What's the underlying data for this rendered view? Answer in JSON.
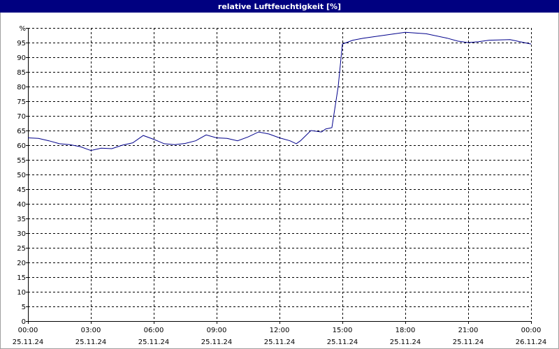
{
  "chart_data": {
    "type": "line",
    "title": "relative Luftfeuchtigkeit [%]",
    "x": [
      0,
      0.5,
      1,
      1.5,
      2,
      2.5,
      3,
      3.5,
      4,
      4.5,
      5,
      5.5,
      6,
      6.5,
      7,
      7.5,
      8,
      8.5,
      9,
      9.5,
      10,
      10.5,
      11,
      11.5,
      12,
      12.5,
      12.8,
      13,
      13.5,
      14,
      14.2,
      14.5,
      14.8,
      15,
      15.5,
      16,
      17,
      18,
      19,
      20,
      20.5,
      21,
      21.5,
      22,
      23,
      24
    ],
    "series": [
      {
        "name": "relative Luftfeuchtigkeit",
        "color": "#00008b",
        "values": [
          62.5,
          62.3,
          61.5,
          60.5,
          60.2,
          59.5,
          58.2,
          59,
          58.8,
          60,
          60.8,
          63.3,
          62,
          60.5,
          60.2,
          60.6,
          61.5,
          63.5,
          62.5,
          62.3,
          61.5,
          62.8,
          64.5,
          63.8,
          62.5,
          61.5,
          60.5,
          61.5,
          65,
          64.5,
          65.5,
          66,
          80,
          94.5,
          95.8,
          96.5,
          97.5,
          98.5,
          98,
          96.5,
          95.5,
          95,
          95.3,
          95.8,
          96,
          94.5
        ]
      }
    ],
    "xlim": [
      0,
      24
    ],
    "xticks": [
      {
        "value": 0,
        "label": "00:00"
      },
      {
        "value": 3,
        "label": "03:00"
      },
      {
        "value": 6,
        "label": "06:00"
      },
      {
        "value": 9,
        "label": "09:00"
      },
      {
        "value": 12,
        "label": "12:00"
      },
      {
        "value": 15,
        "label": "15:00"
      },
      {
        "value": 18,
        "label": "18:00"
      },
      {
        "value": 21,
        "label": "21:00"
      },
      {
        "value": 24,
        "label": "00:00"
      }
    ],
    "xtick_dates": [
      "25.11.24",
      "25.11.24",
      "25.11.24",
      "25.11.24",
      "25.11.24",
      "25.11.24",
      "25.11.24",
      "25.11.24",
      "26.11.24"
    ],
    "ylim": [
      0,
      100
    ],
    "yticks": [
      0,
      5,
      10,
      15,
      20,
      25,
      30,
      35,
      40,
      45,
      50,
      55,
      60,
      65,
      70,
      75,
      80,
      85,
      90,
      95,
      {
        "value": 100,
        "label": "%"
      }
    ],
    "grid": true
  }
}
